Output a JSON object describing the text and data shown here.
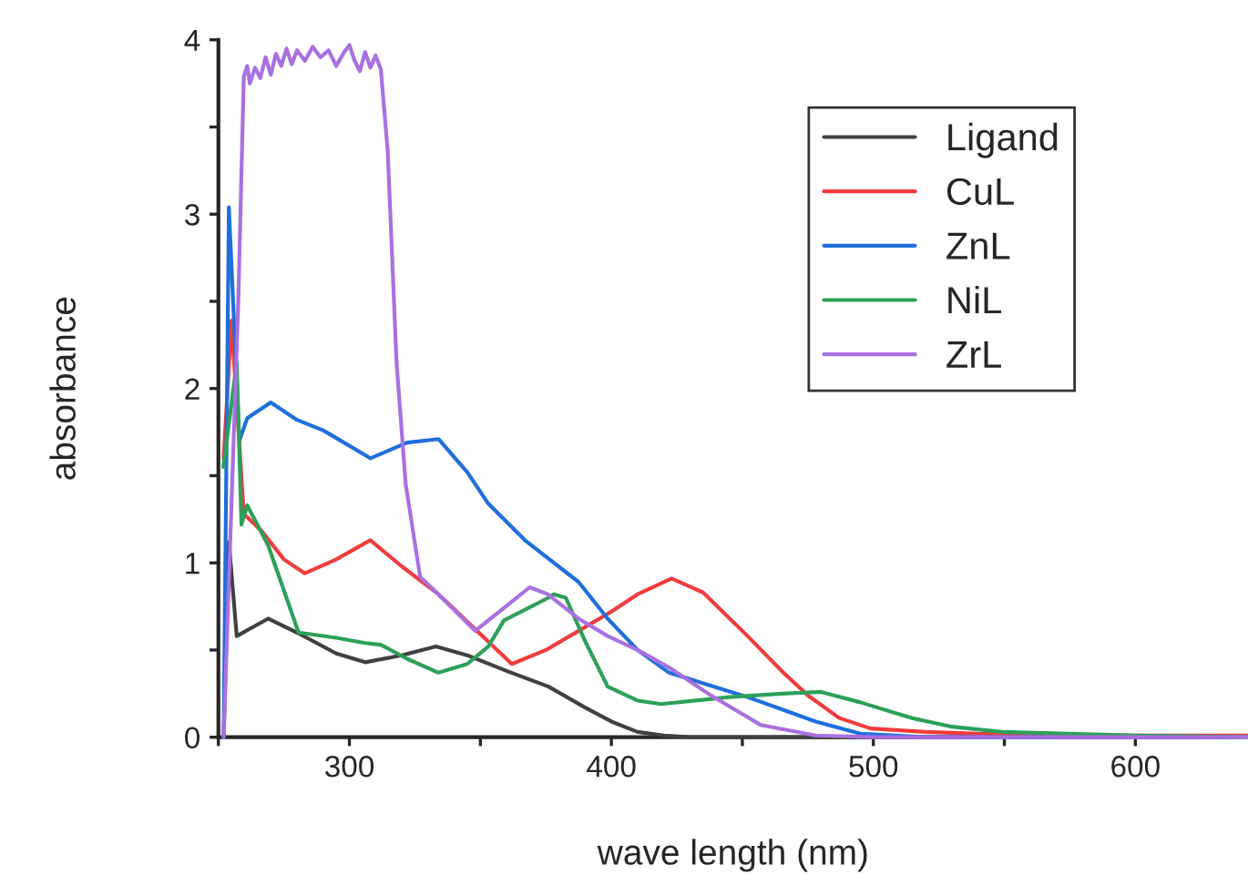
{
  "chart_data": {
    "type": "line",
    "xlabel": "wave length (nm)",
    "ylabel": "absorbance",
    "xlim": [
      250,
      643
    ],
    "ylim": [
      0,
      4
    ],
    "xticks": [
      {
        "value": 250,
        "label": null
      },
      300,
      {
        "value": 350,
        "label": null
      },
      400,
      {
        "value": 450,
        "label": null
      },
      500,
      {
        "value": 550,
        "label": null
      },
      600
    ],
    "yticks": [
      0,
      {
        "value": 0.5,
        "label": null
      },
      1,
      {
        "value": 1.5,
        "label": null
      },
      2,
      {
        "value": 2.5,
        "label": null
      },
      3,
      {
        "value": 3.5,
        "label": null
      },
      4
    ],
    "grid": false,
    "legend": "top right",
    "marker": "none",
    "line_style": "solid",
    "series": [
      {
        "name": "Ligand",
        "color": "#404040",
        "x": [
          252,
          254,
          257,
          263,
          269,
          280,
          295,
          306,
          320,
          333,
          345,
          360,
          376,
          390,
          400,
          410,
          420,
          430,
          450,
          500,
          550,
          600,
          643
        ],
        "values": [
          0,
          1.12,
          0.58,
          0.63,
          0.68,
          0.6,
          0.48,
          0.43,
          0.47,
          0.52,
          0.47,
          0.38,
          0.29,
          0.17,
          0.09,
          0.03,
          0.01,
          0,
          0,
          0,
          0,
          0,
          0
        ]
      },
      {
        "name": "CuL",
        "color": "#f03c3c",
        "x": [
          252,
          255,
          259.7,
          266.7,
          275,
          283,
          295,
          308,
          320,
          334,
          348,
          362,
          375,
          387.5,
          400,
          410,
          423,
          435,
          452,
          465,
          475,
          487,
          499,
          520,
          540,
          600,
          643
        ],
        "values": [
          1.6,
          2.39,
          1.28,
          1.18,
          1.02,
          0.94,
          1.02,
          1.13,
          0.98,
          0.82,
          0.62,
          0.42,
          0.5,
          0.61,
          0.72,
          0.82,
          0.91,
          0.83,
          0.58,
          0.38,
          0.24,
          0.11,
          0.05,
          0.03,
          0.02,
          0.01,
          0.01
        ]
      },
      {
        "name": "ZnL",
        "color": "#1f6fdb",
        "x": [
          252,
          254,
          258,
          261,
          270,
          280,
          290,
          308,
          322,
          334,
          345,
          353,
          367,
          387.5,
          398.6,
          410,
          422,
          437,
          452,
          465,
          478,
          495,
          520,
          600,
          643
        ],
        "values": [
          0,
          3.04,
          1.7,
          1.83,
          1.92,
          1.82,
          1.76,
          1.6,
          1.69,
          1.71,
          1.52,
          1.34,
          1.13,
          0.89,
          0.68,
          0.5,
          0.37,
          0.3,
          0.23,
          0.16,
          0.09,
          0.02,
          0,
          0,
          0
        ]
      },
      {
        "name": "NiL",
        "color": "#2ca05a",
        "x": [
          251.9,
          257,
          258.8,
          261,
          269,
          280.6,
          295,
          306,
          312,
          322,
          334,
          345,
          353,
          359,
          376,
          378,
          382.6,
          390,
          398.6,
          410,
          419,
          445,
          465,
          480,
          495,
          514.6,
          530,
          549,
          600,
          643
        ],
        "values": [
          1.55,
          2.15,
          1.22,
          1.33,
          1.1,
          0.6,
          0.57,
          0.54,
          0.53,
          0.45,
          0.37,
          0.42,
          0.52,
          0.67,
          0.8,
          0.82,
          0.8,
          0.55,
          0.29,
          0.21,
          0.19,
          0.23,
          0.25,
          0.26,
          0.2,
          0.11,
          0.06,
          0.03,
          0.01,
          0
        ]
      },
      {
        "name": "ZrL",
        "color": "#a970e0",
        "x": [
          252,
          257.6,
          259.7,
          261,
          262,
          264,
          266,
          268,
          270,
          272,
          274,
          276,
          278,
          280,
          283,
          286,
          289,
          292,
          295,
          298,
          300,
          302,
          304,
          306,
          308,
          310,
          312,
          314.6,
          318,
          321.5,
          327,
          336,
          348,
          359.7,
          368.8,
          375.7,
          387.5,
          398.6,
          410,
          422,
          438,
          457,
          478,
          500,
          600,
          643
        ],
        "values": [
          0,
          2.5,
          3.79,
          3.85,
          3.75,
          3.84,
          3.78,
          3.9,
          3.8,
          3.92,
          3.85,
          3.95,
          3.86,
          3.94,
          3.88,
          3.96,
          3.9,
          3.94,
          3.85,
          3.93,
          3.97,
          3.88,
          3.82,
          3.93,
          3.84,
          3.91,
          3.83,
          3.37,
          2.15,
          1.45,
          0.92,
          0.79,
          0.61,
          0.75,
          0.86,
          0.82,
          0.68,
          0.58,
          0.5,
          0.4,
          0.24,
          0.07,
          0.01,
          0,
          0,
          0
        ]
      }
    ]
  }
}
